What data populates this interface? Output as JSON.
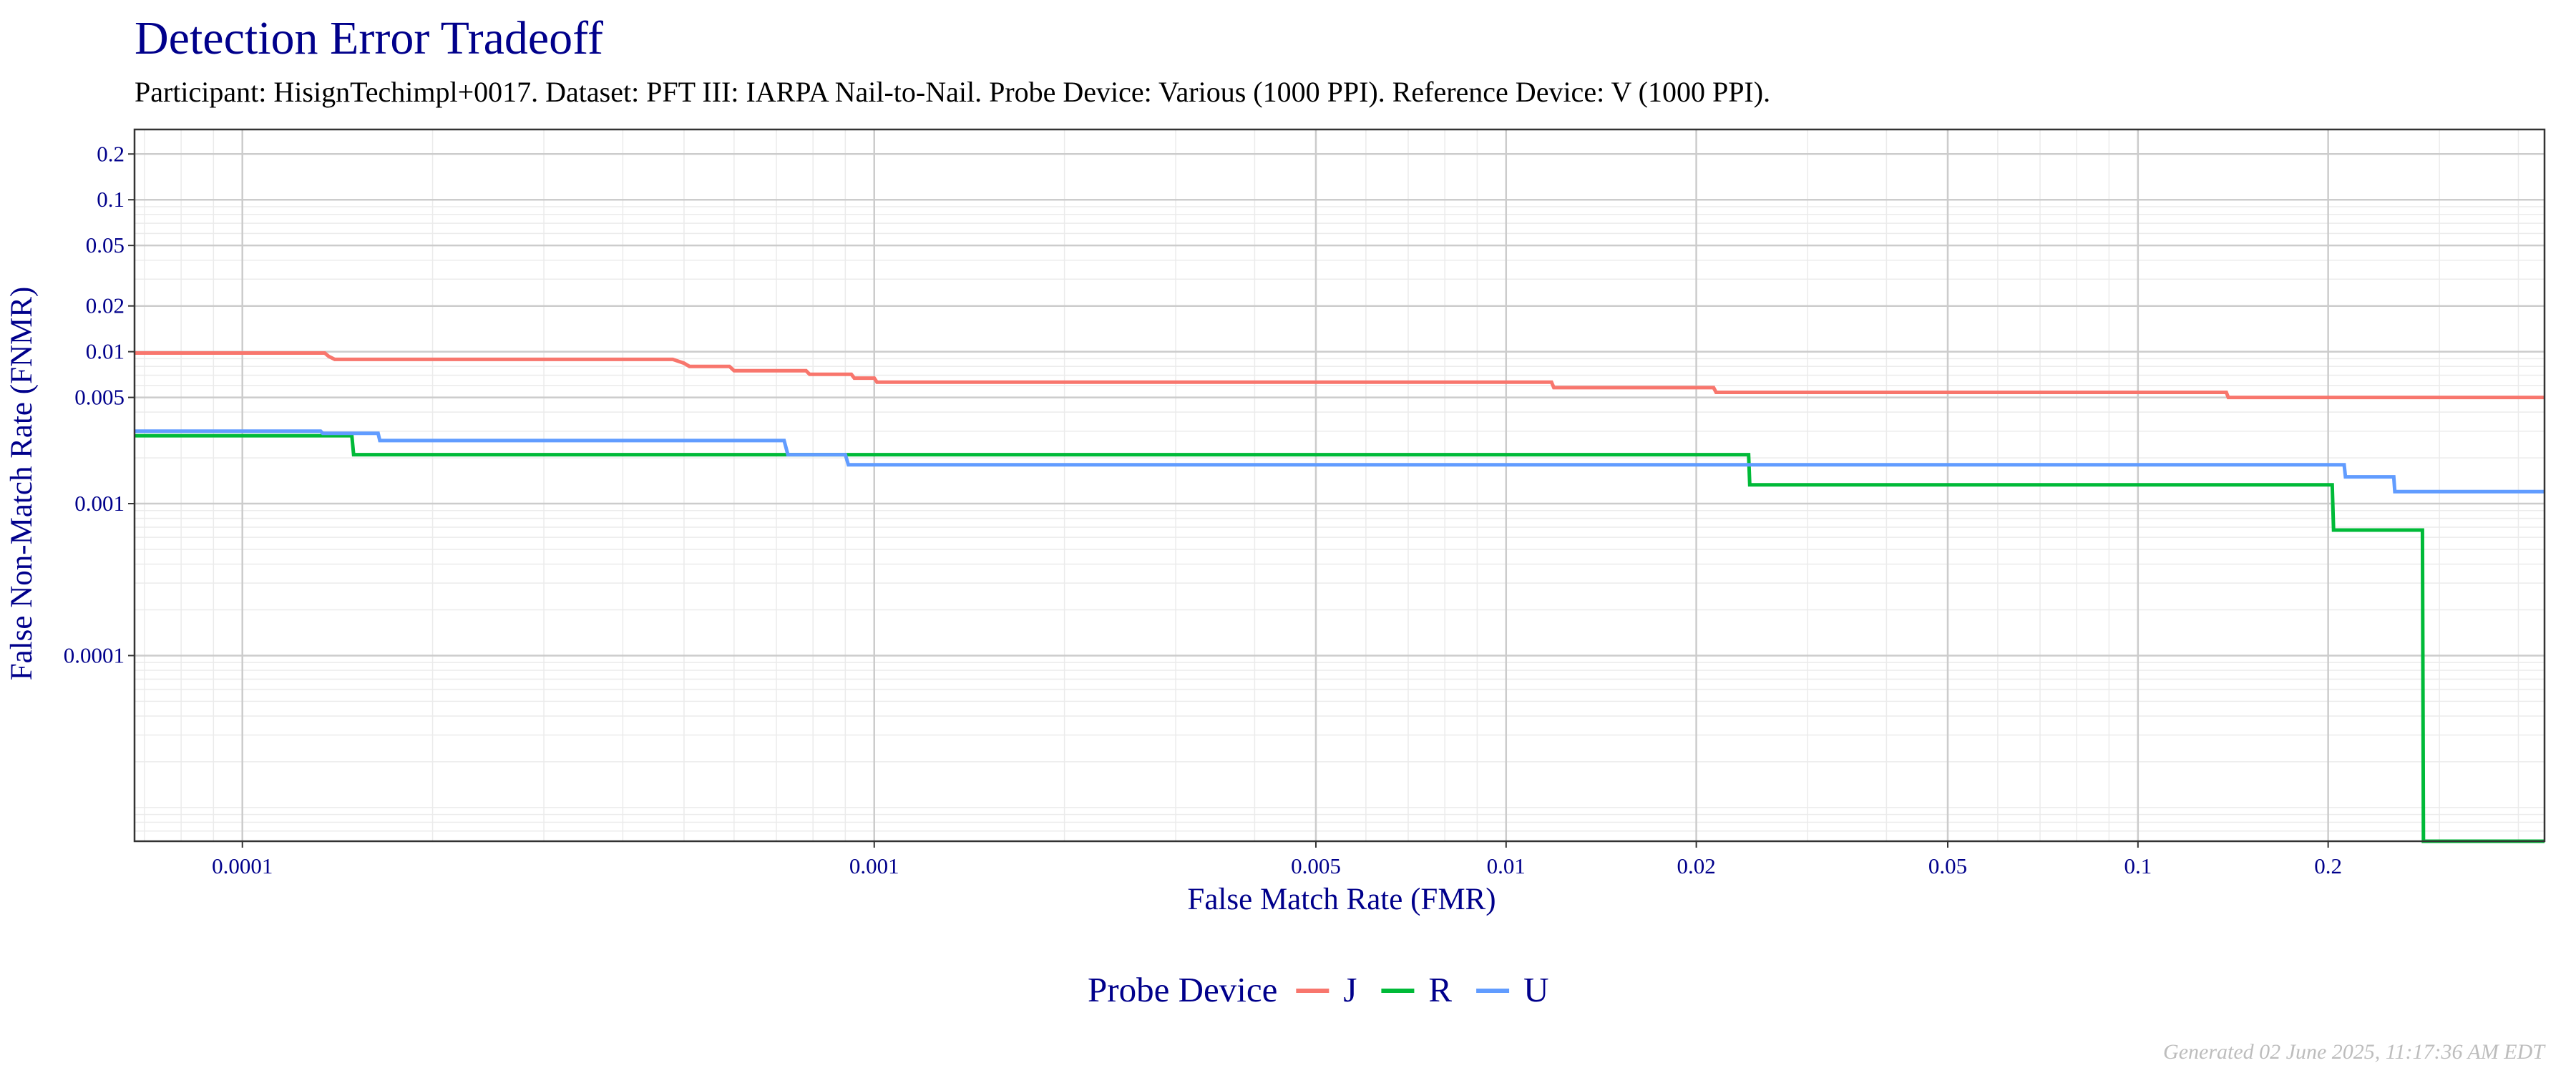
{
  "chart_data": {
    "type": "line",
    "step": true,
    "title": "Detection Error Tradeoff",
    "subtitle": "Participant: HisignTechimpl+0017. Dataset: PFT III: IARPA Nail-to-Nail. Probe Device: Various (1000 PPI). Reference Device: V (1000 PPI).",
    "xlabel": "False Match Rate (FMR)",
    "ylabel": "False Non-Match Rate (FNMR)",
    "x_scale": "log",
    "y_scale": "log",
    "xlim": [
      6.75e-05,
      0.44
    ],
    "ylim": [
      6e-06,
      0.29
    ],
    "x_ticks": [
      {
        "value": 0.0001,
        "label": "0.0001"
      },
      {
        "value": 0.001,
        "label": "0.001"
      },
      {
        "value": 0.005,
        "label": "0.005"
      },
      {
        "value": 0.01,
        "label": "0.01"
      },
      {
        "value": 0.02,
        "label": "0.02"
      },
      {
        "value": 0.05,
        "label": "0.05"
      },
      {
        "value": 0.1,
        "label": "0.1"
      },
      {
        "value": 0.2,
        "label": "0.2"
      }
    ],
    "y_ticks": [
      {
        "value": 0.0001,
        "label": "0.0001"
      },
      {
        "value": 0.001,
        "label": "0.001"
      },
      {
        "value": 0.005,
        "label": "0.005"
      },
      {
        "value": 0.01,
        "label": "0.01"
      },
      {
        "value": 0.02,
        "label": "0.02"
      },
      {
        "value": 0.05,
        "label": "0.05"
      },
      {
        "value": 0.1,
        "label": "0.1"
      },
      {
        "value": 0.2,
        "label": "0.2"
      }
    ],
    "legend_title": "Probe Device",
    "legend_position": "bottom",
    "grid": true,
    "series": [
      {
        "name": "J",
        "color": "#F8766D",
        "points": [
          [
            6.75e-05,
            0.0098
          ],
          [
            0.000135,
            0.0098
          ],
          [
            0.000137,
            0.0093
          ],
          [
            0.00014,
            0.0089
          ],
          [
            0.00048,
            0.0089
          ],
          [
            0.0005,
            0.0084
          ],
          [
            0.00051,
            0.008
          ],
          [
            0.00059,
            0.008
          ],
          [
            0.0006,
            0.0075
          ],
          [
            0.00078,
            0.0075
          ],
          [
            0.00079,
            0.0071
          ],
          [
            0.00092,
            0.0071
          ],
          [
            0.00093,
            0.0067
          ],
          [
            0.001,
            0.0067
          ],
          [
            0.00101,
            0.0063
          ],
          [
            0.0118,
            0.0063
          ],
          [
            0.0119,
            0.0058
          ],
          [
            0.0213,
            0.0058
          ],
          [
            0.0215,
            0.0054
          ],
          [
            0.138,
            0.0054
          ],
          [
            0.139,
            0.005
          ],
          [
            0.44,
            0.005
          ]
        ]
      },
      {
        "name": "R",
        "color": "#00BA38",
        "points": [
          [
            6.75e-05,
            0.0028
          ],
          [
            0.000149,
            0.0028
          ],
          [
            0.00015,
            0.0021
          ],
          [
            0.00071,
            0.0021
          ],
          [
            0.00072,
            0.0021
          ],
          [
            0.0242,
            0.0021
          ],
          [
            0.0243,
            0.00133
          ],
          [
            0.203,
            0.00133
          ],
          [
            0.204,
            0.00067
          ],
          [
            0.282,
            0.00067
          ],
          [
            0.283,
            6e-06
          ],
          [
            0.44,
            6e-06
          ]
        ]
      },
      {
        "name": "U",
        "color": "#619CFF",
        "points": [
          [
            6.75e-05,
            0.003
          ],
          [
            0.000133,
            0.003
          ],
          [
            0.000134,
            0.0029
          ],
          [
            0.000164,
            0.0029
          ],
          [
            0.000165,
            0.0026
          ],
          [
            0.00072,
            0.0026
          ],
          [
            0.00073,
            0.0021
          ],
          [
            0.0009,
            0.0021
          ],
          [
            0.00091,
            0.0018
          ],
          [
            0.212,
            0.0018
          ],
          [
            0.213,
            0.0015
          ],
          [
            0.254,
            0.0015
          ],
          [
            0.255,
            0.0012
          ],
          [
            0.44,
            0.0012
          ]
        ]
      }
    ]
  },
  "footer": "Generated 02 June 2025, 11:17:36 AM EDT"
}
